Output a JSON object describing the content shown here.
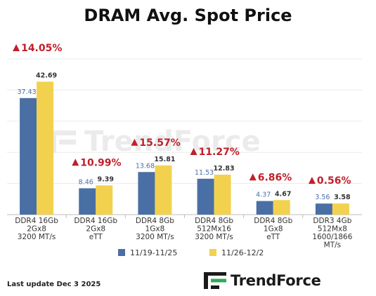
{
  "chart_data": {
    "type": "bar",
    "title": "DRAM Avg. Spot Price",
    "categories": [
      [
        "DDR4 16Gb",
        "2Gx8",
        "3200 MT/s"
      ],
      [
        "DDR4 16Gb",
        "2Gx8",
        "eTT"
      ],
      [
        "DDR4 8Gb",
        "1Gx8",
        "3200 MT/s"
      ],
      [
        "DDR4 8Gb",
        "512Mx16",
        "3200 MT/s"
      ],
      [
        "DDR4 8Gb",
        "1Gx8",
        "eTT"
      ],
      [
        "DDR3 4Gb",
        "512Mx8",
        "1600/1866",
        "MT/s"
      ]
    ],
    "series": [
      {
        "name": "11/19-11/25",
        "color": "#4a6fa5",
        "values": [
          37.43,
          8.46,
          13.68,
          11.53,
          4.37,
          3.56
        ]
      },
      {
        "name": "11/26-12/2",
        "color": "#f2d14f",
        "values": [
          42.69,
          9.39,
          15.81,
          12.83,
          4.67,
          3.58
        ]
      }
    ],
    "changes": [
      "14.05%",
      "10.99%",
      "15.57%",
      "11.27%",
      "6.86%",
      "0.56%"
    ],
    "change_color": "#c0202a",
    "ylim": [
      0,
      50
    ],
    "grid": true,
    "legend_position": "bottom"
  },
  "footer": {
    "last_update": "Last update Dec 3  2025",
    "brand": "TrendForce"
  },
  "watermark": {
    "text": "TrendForce"
  }
}
